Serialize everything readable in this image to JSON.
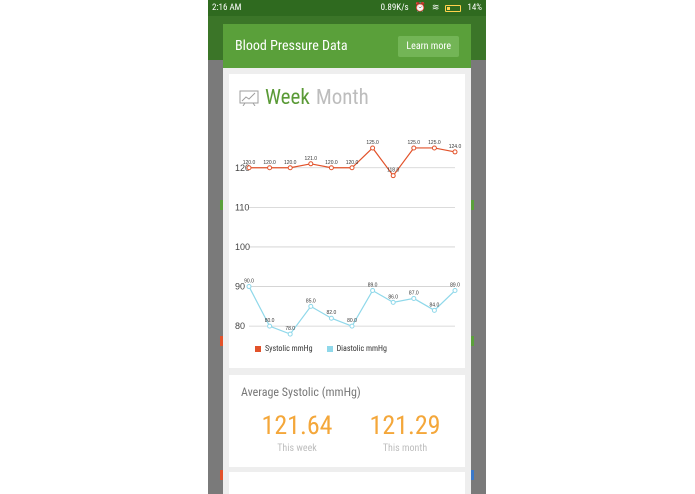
{
  "status": {
    "time": "2:16 AM",
    "speed": "0.89K/s",
    "battery": "14%"
  },
  "dialog": {
    "title": "Blood Pressure Data",
    "learn_more": "Learn more"
  },
  "tabs": {
    "week": "Week",
    "month": "Month",
    "active": "Week"
  },
  "chart_data": {
    "type": "line",
    "x": [
      1,
      2,
      3,
      4,
      5,
      6,
      7,
      8,
      9,
      10,
      11
    ],
    "yticks": [
      80,
      90,
      100,
      110,
      120
    ],
    "series": [
      {
        "name": "Systolic mmHg",
        "color": "#e2522a",
        "values": [
          120.0,
          120.0,
          120.0,
          121.0,
          120.0,
          120.0,
          125.0,
          118.0,
          125.0,
          125.0,
          124.0
        ],
        "labels": [
          "120.0",
          "120.0",
          "120.0",
          "121.0",
          "120.0",
          "120.0",
          "125.0",
          "118.0",
          "125.0",
          "125.0",
          "124.0"
        ]
      },
      {
        "name": "Diastolic mmHg",
        "color": "#8fd8ea",
        "values": [
          90.0,
          80.0,
          78.0,
          85.0,
          82.0,
          80.0,
          89.0,
          86.0,
          87.0,
          84.0,
          89.0
        ],
        "labels": [
          "90.0",
          "80.0",
          "78.0",
          "85.0",
          "82.0",
          "80.0",
          "89.0",
          "86.0",
          "87.0",
          "84.0",
          "89.0"
        ]
      }
    ],
    "ylim": [
      76,
      126
    ],
    "grid": true,
    "legend": "bottom-left"
  },
  "average": {
    "title": "Average Systolic (mmHg)",
    "week_value": "121.64",
    "week_label": "This week",
    "month_value": "121.29",
    "month_label": "This month"
  },
  "colors": {
    "header": "#5aa03a",
    "accent": "#f4a73a",
    "systolic": "#e2522a",
    "diastolic": "#8fd8ea"
  }
}
